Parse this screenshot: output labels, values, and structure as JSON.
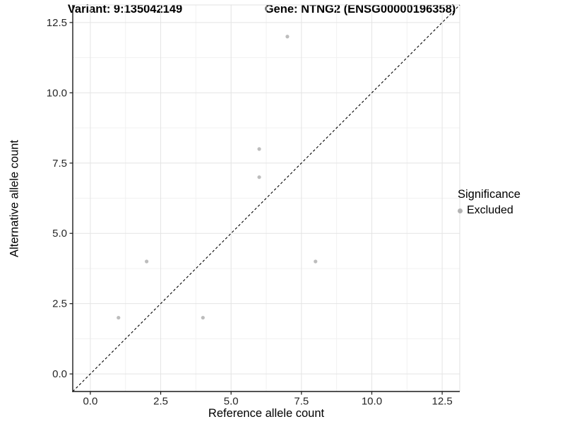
{
  "chart_data": {
    "type": "scatter",
    "title_left": "Variant: 9:135042149",
    "title_right": "Gene: NTNG2 (ENSG00000196358)",
    "xlabel": "Reference allele count",
    "ylabel": "Alternative allele count",
    "xlim": [
      -0.625,
      13.125
    ],
    "ylim": [
      -0.625,
      13.125
    ],
    "x_ticks": [
      0,
      2.5,
      5,
      7.5,
      10,
      12.5
    ],
    "x_tick_labels": [
      "0.0",
      "2.5",
      "5.0",
      "7.5",
      "10.0",
      "12.5"
    ],
    "y_ticks": [
      0,
      2.5,
      5,
      7.5,
      10,
      12.5
    ],
    "y_tick_labels": [
      "0.0",
      "2.5",
      "5.0",
      "7.5",
      "10.0",
      "12.5"
    ],
    "minor_ticks": [
      1.25,
      3.75,
      6.25,
      8.75,
      11.25
    ],
    "grid": true,
    "legend_position": "right",
    "series": [
      {
        "name": "Excluded",
        "points": [
          [
            1,
            2
          ],
          [
            2,
            4
          ],
          [
            4,
            2
          ],
          [
            6,
            7
          ],
          [
            6,
            8
          ],
          [
            7,
            12
          ],
          [
            8,
            4
          ]
        ]
      }
    ],
    "reference_line": {
      "kind": "identity y=x",
      "style": "dashed"
    },
    "legend": {
      "title": "Significance",
      "entries": [
        {
          "label": "Excluded"
        }
      ]
    },
    "colors": {
      "point": "#bdbdbd",
      "legend_point": "#b3b3b3",
      "grid_major": "#e4e4e4",
      "grid_minor": "#f1f1f1",
      "axis_line": "#1a1a1a",
      "panel_edge": "#e0e0e0",
      "reference_line": "#000000",
      "tick_label": "#262626"
    }
  }
}
